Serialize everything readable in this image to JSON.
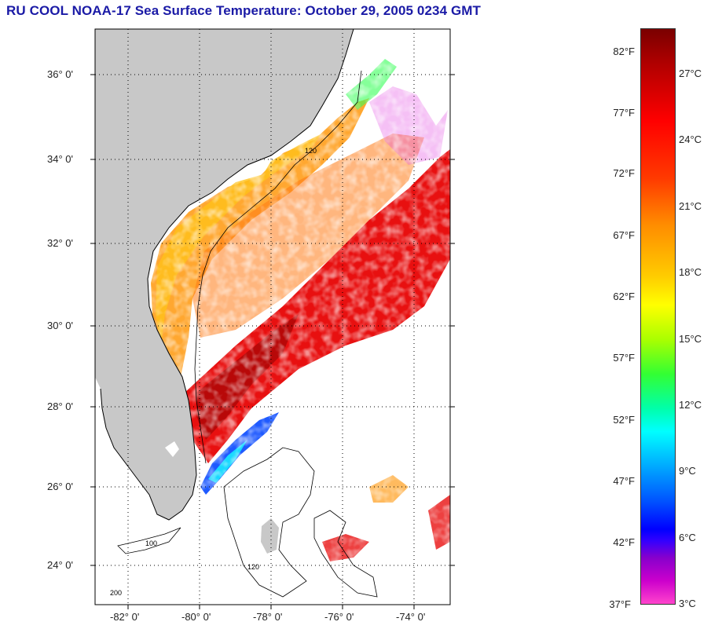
{
  "title": "RU COOL  NOAA-17  Sea Surface Temperature:  October 29, 2005 0234 GMT",
  "map": {
    "lat_labels": [
      "36° 0'",
      "34° 0'",
      "32° 0'",
      "30° 0'",
      "28° 0'",
      "26° 0'",
      "24° 0'"
    ],
    "lon_labels": [
      "-82° 0'",
      "-80° 0'",
      "-78° 0'",
      "-76° 0'",
      "-74° 0'"
    ],
    "contour_labels": [
      "120",
      "100",
      "120",
      "200"
    ],
    "colors": {
      "land": "#c8c8c8",
      "ocean_background": "#ffffff",
      "grid": "#000000"
    }
  },
  "colorbar": {
    "fahrenheit_labels": [
      "82°F",
      "77°F",
      "72°F",
      "67°F",
      "62°F",
      "57°F",
      "52°F",
      "47°F",
      "42°F",
      "37°F"
    ],
    "celsius_labels": [
      "27°C",
      "24°C",
      "21°C",
      "18°C",
      "15°C",
      "12°C",
      "9°C",
      "6°C",
      "3°C"
    ],
    "range_f": [
      37,
      84
    ],
    "range_c": [
      3,
      29
    ]
  }
}
